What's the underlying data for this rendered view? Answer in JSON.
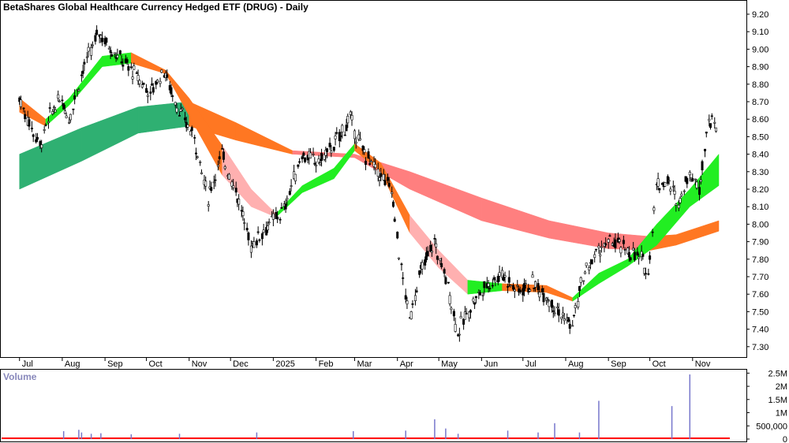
{
  "chart_data": [
    {
      "type": "candlestick",
      "title": "BetaShares Global Healthcare Currency Hedged ETF (DRUG) - Daily",
      "y_axis_position": "right",
      "ylim": [
        7.25,
        9.25
      ],
      "y_ticks": [
        "9.20",
        "9.10",
        "9.00",
        "8.90",
        "8.80",
        "8.70",
        "8.60",
        "8.50",
        "8.40",
        "8.30",
        "8.20",
        "8.10",
        "8.00",
        "7.90",
        "7.80",
        "7.70",
        "7.60",
        "7.50",
        "7.40",
        "7.30"
      ],
      "x_ticks": [
        "Jul",
        "Aug",
        "Sep",
        "Oct",
        "Nov",
        "Dec",
        "2025",
        "Feb",
        "Mar",
        "Apr",
        "May",
        "Jun",
        "Jul",
        "Aug",
        "Sep",
        "Oct",
        "Nov"
      ],
      "grid": false,
      "colors": {
        "short_band_up": "#22ee22",
        "short_band_down": "#ff7722",
        "long_band_up": "#2fb072",
        "long_band_down": "#ff7722",
        "short_band_weak": "#ffb0b0",
        "long_band_weak": "#ff7f7f",
        "candle": "#000000"
      },
      "price_path": [
        {
          "x": "Jul 1 2024",
          "y": 8.72
        },
        {
          "x": "Jul 10 2024",
          "y": 8.55
        },
        {
          "x": "Jul 16 2024",
          "y": 8.45
        },
        {
          "x": "Jul 25 2024",
          "y": 8.65
        },
        {
          "x": "Aug 1 2024",
          "y": 8.72
        },
        {
          "x": "Aug 6 2024",
          "y": 8.6
        },
        {
          "x": "Aug 15 2024",
          "y": 8.85
        },
        {
          "x": "Aug 28 2024",
          "y": 9.1
        },
        {
          "x": "Sep 4 2024",
          "y": 9.02
        },
        {
          "x": "Sep 12 2024",
          "y": 8.95
        },
        {
          "x": "Sep 24 2024",
          "y": 8.85
        },
        {
          "x": "Oct 4 2024",
          "y": 8.75
        },
        {
          "x": "Oct 14 2024",
          "y": 8.88
        },
        {
          "x": "Oct 25 2024",
          "y": 8.65
        },
        {
          "x": "Nov 5 2024",
          "y": 8.5
        },
        {
          "x": "Nov 15 2024",
          "y": 8.15
        },
        {
          "x": "Nov 25 2024",
          "y": 8.4
        },
        {
          "x": "Dec 5 2024",
          "y": 8.2
        },
        {
          "x": "Dec 16 2024",
          "y": 7.88
        },
        {
          "x": "Dec 27 2024",
          "y": 7.98
        },
        {
          "x": "Jan 9 2025",
          "y": 8.08
        },
        {
          "x": "Jan 22 2025",
          "y": 8.4
        },
        {
          "x": "Feb 3 2025",
          "y": 8.35
        },
        {
          "x": "Feb 14 2025",
          "y": 8.45
        },
        {
          "x": "Feb 26 2025",
          "y": 8.6
        },
        {
          "x": "Mar 7 2025",
          "y": 8.42
        },
        {
          "x": "Mar 18 2025",
          "y": 8.3
        },
        {
          "x": "Mar 28 2025",
          "y": 8.2
        },
        {
          "x": "Apr 4 2025",
          "y": 7.75
        },
        {
          "x": "Apr 10 2025",
          "y": 7.45
        },
        {
          "x": "Apr 17 2025",
          "y": 7.7
        },
        {
          "x": "Apr 28 2025",
          "y": 7.9
        },
        {
          "x": "May 8 2025",
          "y": 7.65
        },
        {
          "x": "May 15 2025",
          "y": 7.38
        },
        {
          "x": "May 26 2025",
          "y": 7.55
        },
        {
          "x": "Jun 5 2025",
          "y": 7.65
        },
        {
          "x": "Jun 16 2025",
          "y": 7.72
        },
        {
          "x": "Jun 27 2025",
          "y": 7.62
        },
        {
          "x": "Jul 8 2025",
          "y": 7.66
        },
        {
          "x": "Jul 18 2025",
          "y": 7.6
        },
        {
          "x": "Jul 29 2025",
          "y": 7.48
        },
        {
          "x": "Aug 6 2025",
          "y": 7.42
        },
        {
          "x": "Aug 14 2025",
          "y": 7.7
        },
        {
          "x": "Aug 25 2025",
          "y": 7.85
        },
        {
          "x": "Sep 4 2025",
          "y": 7.9
        },
        {
          "x": "Sep 15 2025",
          "y": 7.85
        },
        {
          "x": "Sep 25 2025",
          "y": 7.8
        },
        {
          "x": "Sep 30 2025",
          "y": 7.72
        },
        {
          "x": "Oct 6 2025",
          "y": 8.22
        },
        {
          "x": "Oct 14 2025",
          "y": 8.25
        },
        {
          "x": "Oct 22 2025",
          "y": 8.12
        },
        {
          "x": "Oct 30 2025",
          "y": 8.3
        },
        {
          "x": "Nov 6 2025",
          "y": 8.2
        },
        {
          "x": "Nov 13 2025",
          "y": 8.6
        },
        {
          "x": "Nov 20 2025",
          "y": 8.55
        }
      ],
      "short_term_band": [
        {
          "x": "Jul 1 2024",
          "upper": 8.72,
          "lower": 8.64
        },
        {
          "x": "Jul 20 2024",
          "upper": 8.6,
          "lower": 8.56
        },
        {
          "x": "Aug 6 2024",
          "upper": 8.72,
          "lower": 8.68
        },
        {
          "x": "Aug 30 2024",
          "upper": 8.96,
          "lower": 8.9
        },
        {
          "x": "Sep 20 2024",
          "upper": 8.98,
          "lower": 8.92
        },
        {
          "x": "Oct 15 2024",
          "upper": 8.88,
          "lower": 8.86
        },
        {
          "x": "Nov 1 2024",
          "upper": 8.72,
          "lower": 8.62
        },
        {
          "x": "Nov 25 2024",
          "upper": 8.45,
          "lower": 8.28
        },
        {
          "x": "Dec 16 2024",
          "upper": 8.2,
          "lower": 8.1
        },
        {
          "x": "Jan 3 2025",
          "upper": 8.06,
          "lower": 8.04
        },
        {
          "x": "Jan 22 2025",
          "upper": 8.22,
          "lower": 8.18
        },
        {
          "x": "Feb 14 2025",
          "upper": 8.32,
          "lower": 8.26
        },
        {
          "x": "Mar 1 2025",
          "upper": 8.46,
          "lower": 8.42
        },
        {
          "x": "Mar 20 2025",
          "upper": 8.35,
          "lower": 8.3
        },
        {
          "x": "Apr 10 2025",
          "upper": 8.05,
          "lower": 7.95
        },
        {
          "x": "May 1 2025",
          "upper": 7.85,
          "lower": 7.75
        },
        {
          "x": "May 22 2025",
          "upper": 7.68,
          "lower": 7.6
        },
        {
          "x": "Jun 16 2025",
          "upper": 7.66,
          "lower": 7.62
        },
        {
          "x": "Jul 18 2025",
          "upper": 7.65,
          "lower": 7.61
        },
        {
          "x": "Aug 6 2025",
          "upper": 7.58,
          "lower": 7.56
        },
        {
          "x": "Aug 25 2025",
          "upper": 7.72,
          "lower": 7.66
        },
        {
          "x": "Sep 15 2025",
          "upper": 7.8,
          "lower": 7.76
        },
        {
          "x": "Oct 6 2025",
          "upper": 8.0,
          "lower": 7.88
        },
        {
          "x": "Oct 30 2025",
          "upper": 8.2,
          "lower": 8.1
        },
        {
          "x": "Nov 20 2025",
          "upper": 8.4,
          "lower": 8.22
        }
      ],
      "long_term_band": [
        {
          "x": "Jul 1 2024",
          "upper": 8.4,
          "lower": 8.2
        },
        {
          "x": "Aug 15 2024",
          "upper": 8.55,
          "lower": 8.36
        },
        {
          "x": "Sep 25 2024",
          "upper": 8.67,
          "lower": 8.52
        },
        {
          "x": "Nov 1 2024",
          "upper": 8.7,
          "lower": 8.56
        },
        {
          "x": "Dec 5 2024",
          "upper": 8.58,
          "lower": 8.48
        },
        {
          "x": "Jan 15 2025",
          "upper": 8.42,
          "lower": 8.4
        },
        {
          "x": "Mar 1 2025",
          "upper": 8.4,
          "lower": 8.38
        },
        {
          "x": "Apr 10 2025",
          "upper": 8.3,
          "lower": 8.2
        },
        {
          "x": "Jun 1 2025",
          "upper": 8.15,
          "lower": 8.02
        },
        {
          "x": "Jul 20 2025",
          "upper": 8.02,
          "lower": 7.92
        },
        {
          "x": "Sep 1 2025",
          "upper": 7.95,
          "lower": 7.86
        },
        {
          "x": "Oct 1 2025",
          "upper": 7.93,
          "lower": 7.85
        },
        {
          "x": "Oct 20 2025",
          "upper": 7.94,
          "lower": 7.88
        },
        {
          "x": "Nov 20 2025",
          "upper": 8.02,
          "lower": 7.96
        }
      ]
    },
    {
      "type": "bar",
      "title": "Volume",
      "y_axis_position": "right",
      "ylim": [
        0,
        2600000
      ],
      "y_ticks": [
        "2.5M",
        "2M",
        "1.5M",
        "1M",
        "500,000",
        "0"
      ],
      "base_series": {
        "name": "",
        "value": 60000,
        "color": "#ff0000"
      },
      "spikes": [
        {
          "x": "Aug 2 2024",
          "value": 300000
        },
        {
          "x": "Aug 13 2024",
          "value": 350000
        },
        {
          "x": "Aug 15 2024",
          "value": 250000
        },
        {
          "x": "Aug 22 2024",
          "value": 200000
        },
        {
          "x": "Aug 29 2024",
          "value": 220000
        },
        {
          "x": "Sep 20 2024",
          "value": 180000
        },
        {
          "x": "Oct 25 2024",
          "value": 200000
        },
        {
          "x": "Dec 20 2024",
          "value": 250000
        },
        {
          "x": "Feb 28 2025",
          "value": 300000
        },
        {
          "x": "Apr 7 2025",
          "value": 320000
        },
        {
          "x": "Apr 28 2025",
          "value": 750000
        },
        {
          "x": "May 6 2025",
          "value": 400000
        },
        {
          "x": "May 15 2025",
          "value": 200000
        },
        {
          "x": "Jun 20 2025",
          "value": 320000
        },
        {
          "x": "Jul 12 2025",
          "value": 250000
        },
        {
          "x": "Jul 24 2025",
          "value": 600000
        },
        {
          "x": "Aug 11 2025",
          "value": 250000
        },
        {
          "x": "Aug 25 2025",
          "value": 1450000
        },
        {
          "x": "Oct 17 2025",
          "value": 1250000
        },
        {
          "x": "Oct 30 2025",
          "value": 2450000
        }
      ],
      "colors": {
        "spike": "#7777cc",
        "base": "#ff0000",
        "title": "#8888bb"
      }
    }
  ]
}
